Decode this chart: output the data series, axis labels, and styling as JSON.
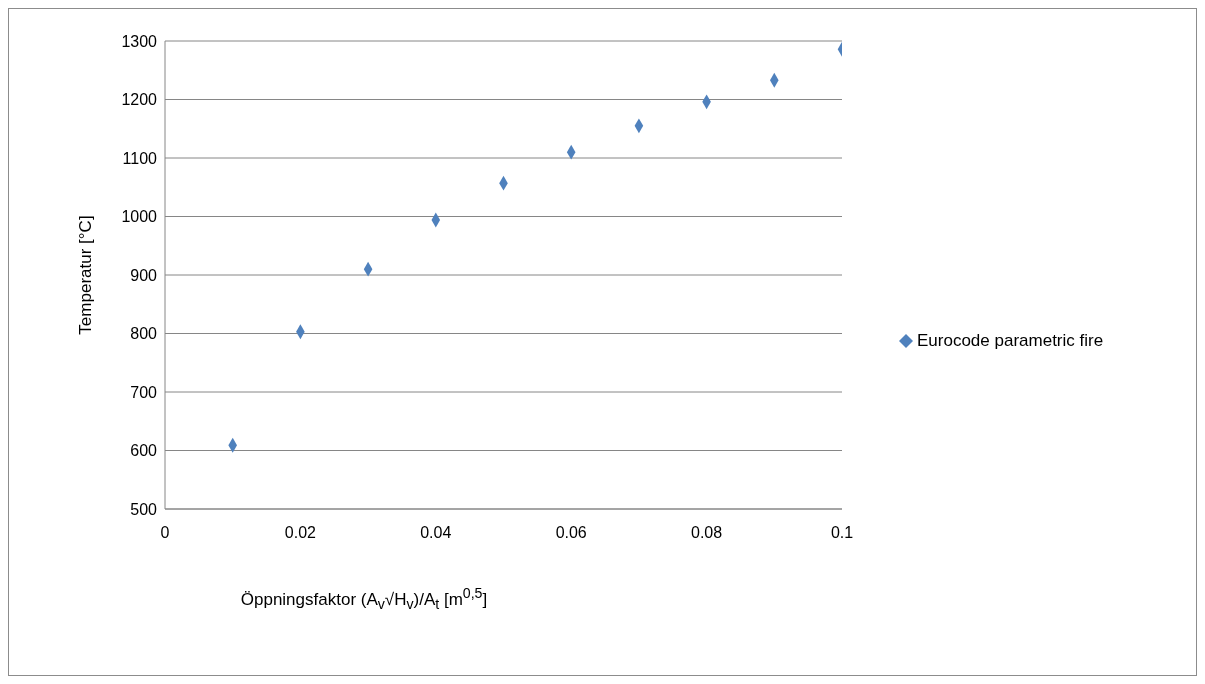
{
  "chart_data": {
    "type": "scatter",
    "xlabel": "Öppningsfaktor (A$_{v}$√H$_{v}$)/A$_{t}$ [m$^{0,5}$]",
    "ylabel": "Temperatur [°C]",
    "x": [
      0.01,
      0.02,
      0.03,
      0.04,
      0.05,
      0.06,
      0.07,
      0.08,
      0.09,
      0.1
    ],
    "series": [
      {
        "name": "Eurocode parametric fire",
        "color": "#4f81bd",
        "values": [
          609,
          803,
          910,
          994,
          1057,
          1110,
          1155,
          1196,
          1233,
          1286
        ]
      }
    ],
    "xlim": [
      0,
      0.1
    ],
    "xticks": [
      0,
      0.02,
      0.04,
      0.06,
      0.08,
      0.1
    ],
    "ylim": [
      500,
      1300
    ],
    "yticks": [
      500,
      600,
      700,
      800,
      900,
      1000,
      1100,
      1200,
      1300
    ],
    "grid": "y",
    "legend": "right",
    "marker": "diamond"
  }
}
